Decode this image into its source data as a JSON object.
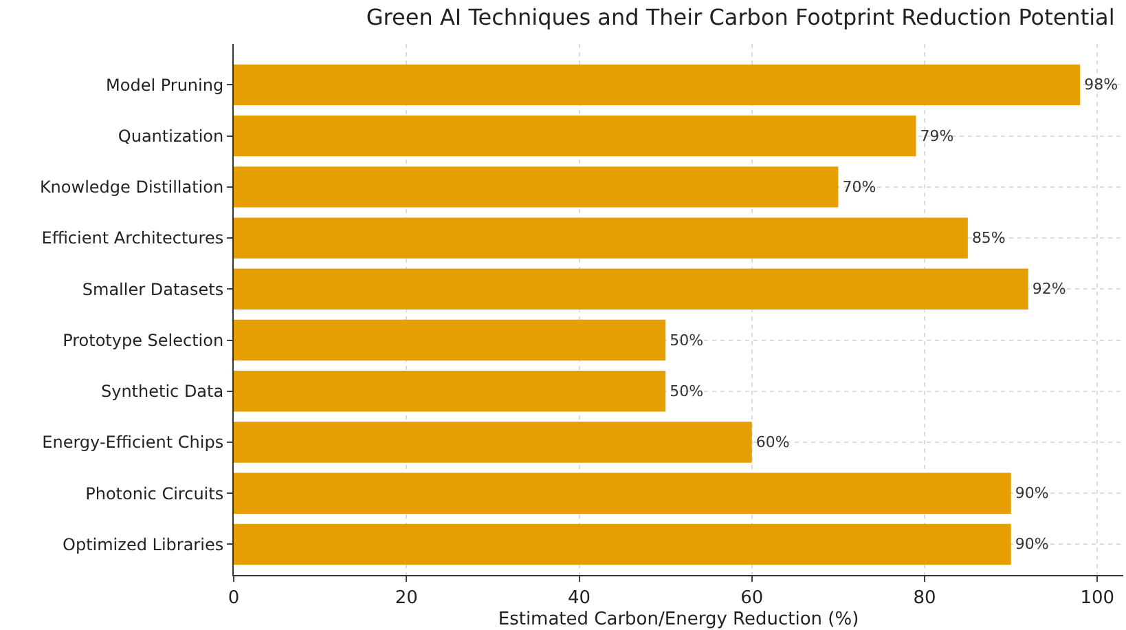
{
  "chart_data": {
    "type": "bar",
    "orientation": "horizontal",
    "title": "Green AI Techniques and Their Carbon Footprint Reduction Potential",
    "xlabel": "Estimated Carbon/Energy Reduction (%)",
    "categories": [
      "Model Pruning",
      "Quantization",
      "Knowledge Distillation",
      "Efficient Architectures",
      "Smaller Datasets",
      "Prototype Selection",
      "Synthetic Data",
      "Energy-Efficient Chips",
      "Photonic Circuits",
      "Optimized Libraries"
    ],
    "values": [
      98,
      79,
      70,
      85,
      92,
      50,
      50,
      60,
      90,
      90
    ],
    "value_labels": [
      "98%",
      "79%",
      "70%",
      "85%",
      "92%",
      "50%",
      "50%",
      "60%",
      "90%",
      "90%"
    ],
    "color": "#e69f00",
    "xlim": [
      0,
      103
    ],
    "xticks": [
      0,
      20,
      40,
      60,
      80,
      100
    ],
    "grid": true
  }
}
